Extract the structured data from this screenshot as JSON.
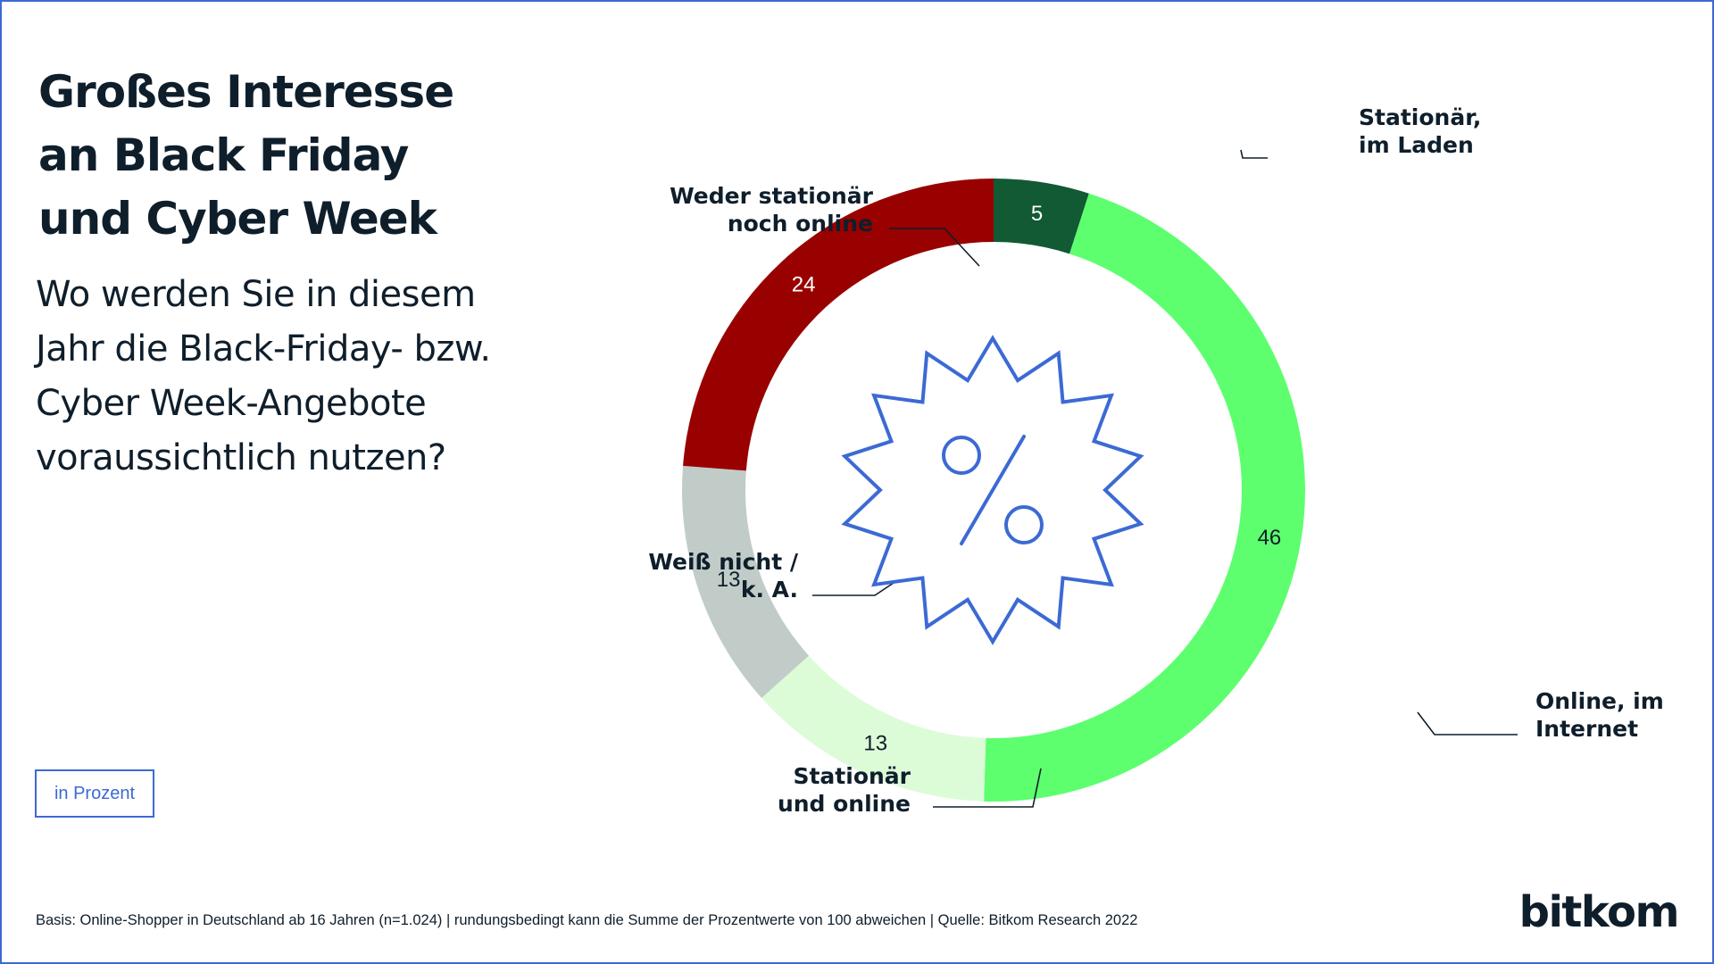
{
  "title_lines": [
    "Großes Interesse",
    "an Black Friday",
    "und Cyber Week"
  ],
  "subtitle_lines": [
    "Wo werden Sie in diesem",
    "Jahr die Black-Friday- bzw.",
    "Cyber Week-Angebote",
    "voraussichtlich nutzen?"
  ],
  "unit_label": "in Prozent",
  "footnote": "Basis: Online-Shopper in Deutschland ab 16 Jahren (n=1.024) | rundungsbedingt kann die Summe der Prozentwerte von 100 abweichen | Quelle: Bitkom Research 2022",
  "logo_text": "bitkom",
  "center_icon": "percent-badge-icon",
  "chart_data": {
    "type": "pie",
    "variant": "donut",
    "title": "Großes Interesse an Black Friday und Cyber Week",
    "categories": [
      {
        "label": [
          "Stationär,",
          "im Laden"
        ],
        "value": 5,
        "color": "#115a33",
        "value_text_color": "#ffffff"
      },
      {
        "label": [
          "Online, im",
          "Internet"
        ],
        "value": 46,
        "color": "#5dff6e",
        "value_text_color": "#0f1e2b"
      },
      {
        "label": [
          "Stationär",
          "und online"
        ],
        "value": 13,
        "color": "#dcfcd8",
        "value_text_color": "#0f1e2b"
      },
      {
        "label": [
          "Weiß nicht /",
          "k. A."
        ],
        "value": 13,
        "color": "#c1ccc8",
        "value_text_color": "#0f1e2b"
      },
      {
        "label": [
          "Weder stationär",
          "noch online"
        ],
        "value": 24,
        "color": "#990000",
        "value_text_color": "#ffffff"
      }
    ],
    "start_angle_deg": 0,
    "direction": "clockwise",
    "colors": {
      "leader": "#0f1e2b",
      "icon": "#3c6ad4"
    }
  }
}
